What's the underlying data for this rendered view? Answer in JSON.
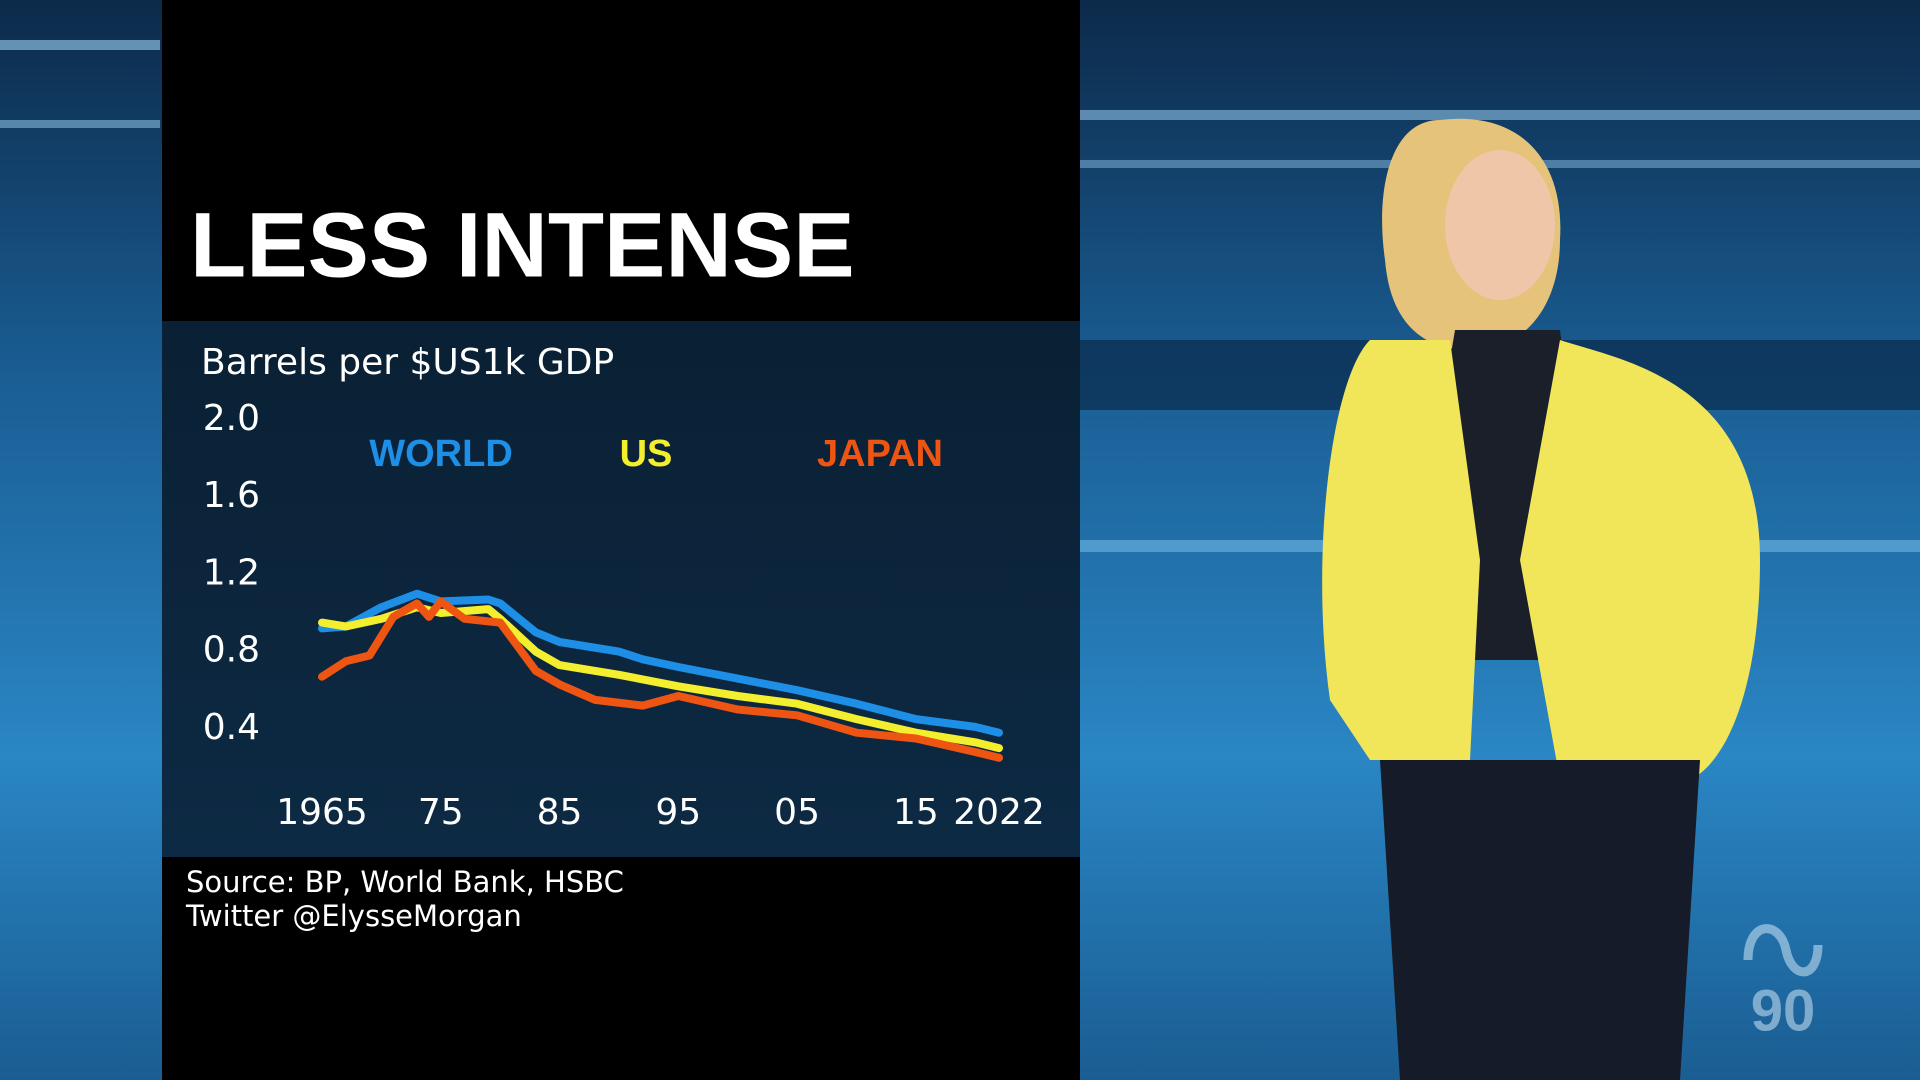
{
  "chart_data": {
    "type": "line",
    "title": "LESS INTENSE",
    "y_label": "Barrels per $US1k GDP",
    "source": "Source: BP, World Bank, HSBC",
    "credit": "Twitter @ElysseMorgan",
    "xlim": [
      1965,
      2022
    ],
    "xticks": [
      1965,
      {
        "value": 1975,
        "label": "75"
      },
      {
        "value": 1985,
        "label": "85"
      },
      {
        "value": 1995,
        "label": "95"
      },
      {
        "value": 2005,
        "label": "05"
      },
      {
        "value": 2015,
        "label": "15"
      },
      2022
    ],
    "ylim": [
      0,
      2
    ],
    "yticks": [
      {
        "value": 2,
        "label": "2.0"
      },
      1.6,
      1.2,
      0.8,
      0.4
    ],
    "grid": false,
    "series": [
      {
        "name": "WORLD",
        "color": "#1e8fe6",
        "x": [
          1965,
          1967,
          1970,
          1973,
          1975,
          1979,
          1980,
          1983,
          1985,
          1990,
          1992,
          1995,
          2000,
          2005,
          2010,
          2015,
          2020,
          2022
        ],
        "values": [
          0.92,
          0.93,
          1.03,
          1.1,
          1.06,
          1.07,
          1.05,
          0.9,
          0.85,
          0.8,
          0.76,
          0.72,
          0.66,
          0.6,
          0.53,
          0.45,
          0.41,
          0.38
        ]
      },
      {
        "name": "US",
        "color": "#f4ef2e",
        "x": [
          1965,
          1967,
          1970,
          1973,
          1975,
          1979,
          1980,
          1983,
          1985,
          1990,
          1995,
          2000,
          2005,
          2010,
          2015,
          2020,
          2022
        ],
        "values": [
          0.95,
          0.93,
          0.97,
          1.03,
          1.0,
          1.02,
          0.97,
          0.8,
          0.73,
          0.68,
          0.62,
          0.57,
          0.53,
          0.45,
          0.38,
          0.33,
          0.3
        ]
      },
      {
        "name": "JAPAN",
        "color": "#ee5512",
        "x": [
          1965,
          1967,
          1969,
          1971,
          1973,
          1974,
          1975,
          1977,
          1980,
          1983,
          1985,
          1988,
          1992,
          1995,
          2000,
          2005,
          2010,
          2015,
          2020,
          2022
        ],
        "values": [
          0.67,
          0.75,
          0.78,
          0.98,
          1.05,
          0.98,
          1.06,
          0.97,
          0.95,
          0.7,
          0.63,
          0.55,
          0.52,
          0.57,
          0.5,
          0.47,
          0.38,
          0.35,
          0.28,
          0.25
        ]
      }
    ]
  },
  "watermark": "90"
}
